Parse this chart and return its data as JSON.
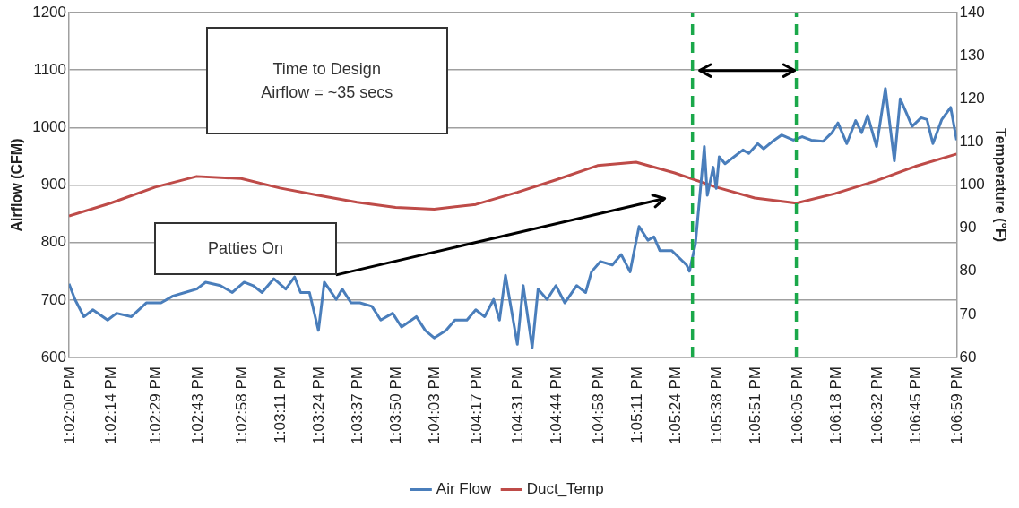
{
  "chart_data": {
    "type": "line",
    "ylabel": "Airflow (CFM)",
    "y2label": "Temperature (°F)",
    "xlim": [
      13.03333,
      13.11639
    ],
    "xticks": [
      {
        "value": 13.03333,
        "label": "1:02:00 PM"
      },
      {
        "value": 13.03722,
        "label": "1:02:14 PM"
      },
      {
        "value": 13.04139,
        "label": "1:02:29 PM"
      },
      {
        "value": 13.04528,
        "label": "1:02:43 PM"
      },
      {
        "value": 13.04944,
        "label": "1:02:58 PM"
      },
      {
        "value": 13.05306,
        "label": "1:03:11 PM"
      },
      {
        "value": 13.05667,
        "label": "1:03:24 PM"
      },
      {
        "value": 13.06028,
        "label": "1:03:37 PM"
      },
      {
        "value": 13.06389,
        "label": "1:03:50 PM"
      },
      {
        "value": 13.0675,
        "label": "1:04:03 PM"
      },
      {
        "value": 13.07139,
        "label": "1:04:17 PM"
      },
      {
        "value": 13.07528,
        "label": "1:04:31 PM"
      },
      {
        "value": 13.07889,
        "label": "1:04:44 PM"
      },
      {
        "value": 13.08278,
        "label": "1:04:58 PM"
      },
      {
        "value": 13.08639,
        "label": "1:05:11 PM"
      },
      {
        "value": 13.09,
        "label": "1:05:24 PM"
      },
      {
        "value": 13.09389,
        "label": "1:05:38 PM"
      },
      {
        "value": 13.0975,
        "label": "1:05:51 PM"
      },
      {
        "value": 13.10139,
        "label": "1:06:05 PM"
      },
      {
        "value": 13.105,
        "label": "1:06:18 PM"
      },
      {
        "value": 13.10889,
        "label": "1:06:32 PM"
      },
      {
        "value": 13.1125,
        "label": "1:06:45 PM"
      },
      {
        "value": 13.11639,
        "label": "1:06:59 PM"
      }
    ],
    "ylim": [
      600,
      1200
    ],
    "yticks": [
      600,
      700,
      800,
      900,
      1000,
      1100,
      1200
    ],
    "y2lim": [
      60,
      140
    ],
    "y2ticks": [
      60,
      70,
      80,
      90,
      100,
      110,
      120,
      130,
      140
    ],
    "grid": "y",
    "legend": "bottom",
    "series": [
      {
        "name": "Air Flow",
        "color": "#4a7ebb",
        "x": [
          13.03333,
          13.03389,
          13.03472,
          13.03556,
          13.03694,
          13.03778,
          13.03917,
          13.04056,
          13.04194,
          13.04306,
          13.04417,
          13.04528,
          13.04611,
          13.0475,
          13.04861,
          13.04972,
          13.05056,
          13.05139,
          13.0525,
          13.05361,
          13.05444,
          13.055,
          13.05583,
          13.05667,
          13.05722,
          13.05833,
          13.05889,
          13.05972,
          13.06056,
          13.06167,
          13.0625,
          13.06361,
          13.06444,
          13.06583,
          13.06667,
          13.0675,
          13.06861,
          13.06944,
          13.07056,
          13.07139,
          13.07222,
          13.07306,
          13.07361,
          13.07417,
          13.07528,
          13.07583,
          13.07667,
          13.07722,
          13.07806,
          13.07889,
          13.07972,
          13.08083,
          13.08167,
          13.08222,
          13.08306,
          13.08417,
          13.085,
          13.08583,
          13.08667,
          13.0875,
          13.08806,
          13.08861,
          13.08972,
          13.09111,
          13.09139,
          13.09194,
          13.09278,
          13.09306,
          13.09361,
          13.09389,
          13.09417,
          13.09472,
          13.09556,
          13.09639,
          13.09694,
          13.09778,
          13.09833,
          13.09917,
          13.1,
          13.10111,
          13.10194,
          13.10278,
          13.10389,
          13.10472,
          13.10528,
          13.10611,
          13.10694,
          13.1075,
          13.10806,
          13.10889,
          13.10972,
          13.11056,
          13.11111,
          13.11167,
          13.11222,
          13.11306,
          13.11361,
          13.11417,
          13.115,
          13.11583,
          13.11639
        ],
        "values": [
          728,
          701,
          671,
          683,
          665,
          677,
          671,
          695,
          695,
          707,
          713,
          719,
          731,
          725,
          713,
          731,
          725,
          713,
          737,
          719,
          740,
          713,
          713,
          647,
          731,
          701,
          719,
          695,
          695,
          689,
          665,
          677,
          653,
          671,
          647,
          634,
          647,
          665,
          665,
          683,
          671,
          701,
          665,
          743,
          623,
          725,
          617,
          719,
          701,
          725,
          695,
          725,
          713,
          749,
          767,
          761,
          779,
          749,
          828,
          804,
          810,
          786,
          786,
          761,
          750,
          797,
          967,
          882,
          931,
          894,
          949,
          937,
          949,
          961,
          955,
          972,
          963,
          976,
          987,
          978,
          984,
          978,
          976,
          991,
          1008,
          972,
          1012,
          991,
          1021,
          967,
          1068,
          942,
          1050,
          1026,
          1002,
          1017,
          1014,
          972,
          1014,
          1035,
          978
        ]
      },
      {
        "name": "Duct_Temp",
        "color": "#be4b48",
        "axis": "y2",
        "x": [
          13.03333,
          13.03722,
          13.04139,
          13.04528,
          13.04944,
          13.05306,
          13.05667,
          13.06028,
          13.06389,
          13.0675,
          13.07139,
          13.07528,
          13.07889,
          13.08278,
          13.08639,
          13.09,
          13.09389,
          13.0975,
          13.10139,
          13.105,
          13.10889,
          13.1125,
          13.11639
        ],
        "values": [
          92.8,
          95.8,
          99.5,
          102,
          101.5,
          99.3,
          97.6,
          96,
          94.8,
          94.4,
          95.5,
          98.3,
          101.2,
          104.5,
          105.3,
          102.8,
          99.5,
          97,
          95.8,
          98,
          101,
          104.3,
          107.2
        ]
      }
    ],
    "ref_lines": [
      {
        "axis": "x",
        "value": 13.09167,
        "color": "#1aa84a",
        "line_style": "dashed"
      },
      {
        "axis": "x",
        "value": 13.10139,
        "color": "#1aa84a",
        "line_style": "dashed"
      }
    ],
    "annotations": [
      "Time to Design\nAirflow = ~35 secs",
      "Patties On"
    ]
  }
}
